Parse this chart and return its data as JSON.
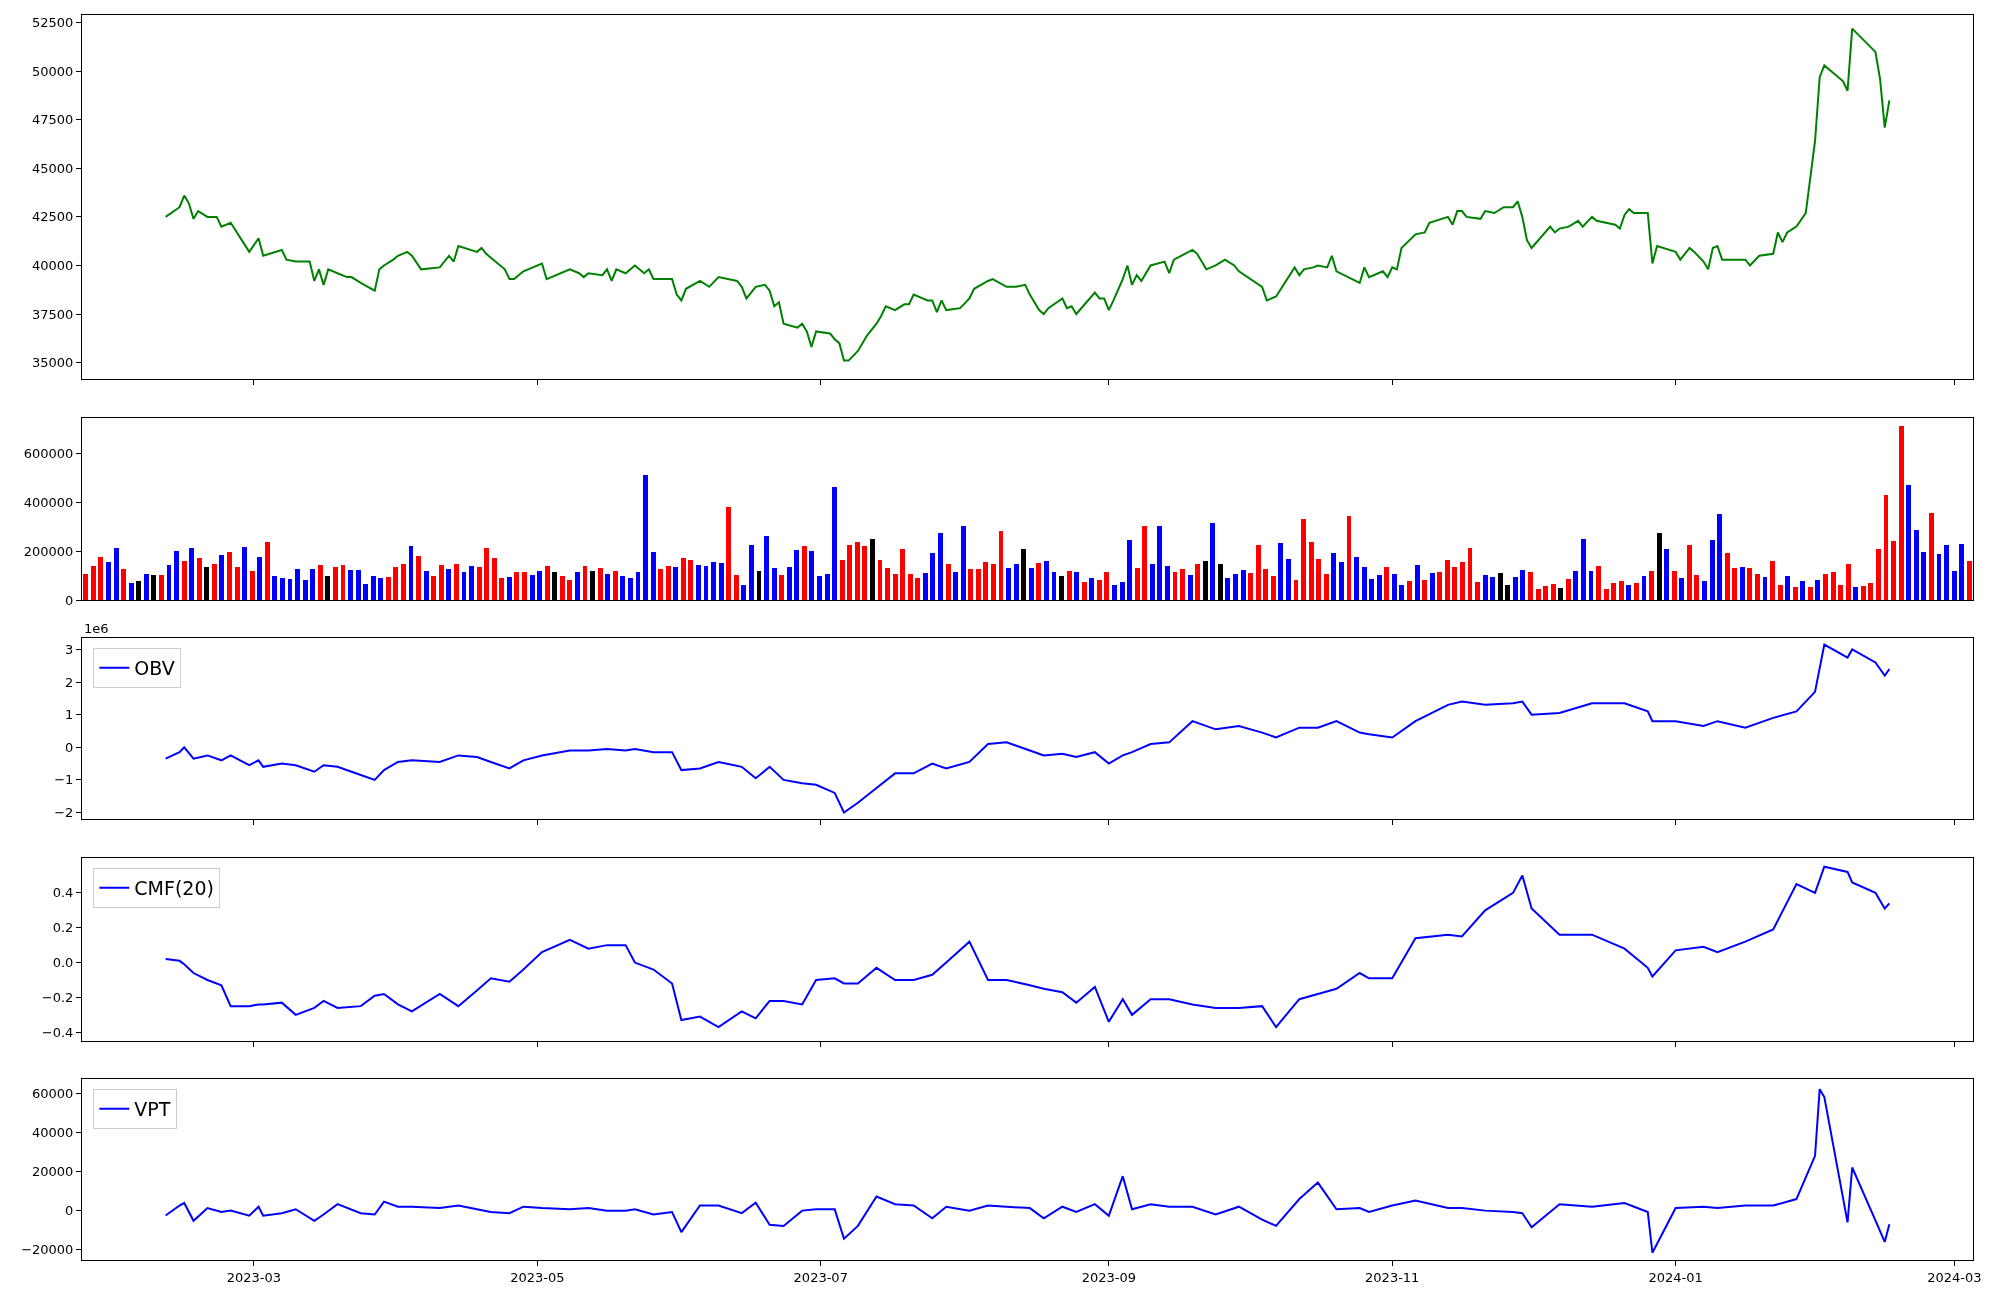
{
  "chart_data": [
    {
      "type": "line",
      "x": [
        "2023-02-10",
        "2023-02-13",
        "2023-02-14",
        "2023-02-15",
        "2023-02-16",
        "2023-02-17",
        "2023-02-19",
        "2023-02-21",
        "2023-02-22",
        "2023-02-24",
        "2023-02-28",
        "2023-03-02",
        "2023-03-03",
        "2023-03-07",
        "2023-03-08",
        "2023-03-10",
        "2023-03-13",
        "2023-03-14",
        "2023-03-15",
        "2023-03-16",
        "2023-03-17",
        "2023-03-19",
        "2023-03-21",
        "2023-03-22",
        "2023-03-24",
        "2023-03-27",
        "2023-03-28",
        "2023-03-29",
        "2023-03-31",
        "2023-04-01",
        "2023-04-03",
        "2023-04-04",
        "2023-04-06",
        "2023-04-10",
        "2023-04-12",
        "2023-04-13",
        "2023-04-14",
        "2023-04-18",
        "2023-04-19",
        "2023-04-20",
        "2023-04-21",
        "2023-04-24",
        "2023-04-25",
        "2023-04-26",
        "2023-04-28",
        "2023-05-02",
        "2023-05-03",
        "2023-05-08",
        "2023-05-10",
        "2023-05-11",
        "2023-05-12",
        "2023-05-15",
        "2023-05-16",
        "2023-05-17",
        "2023-05-18",
        "2023-05-20",
        "2023-05-22",
        "2023-05-24",
        "2023-05-25",
        "2023-05-26",
        "2023-05-30",
        "2023-05-31",
        "2023-06-01",
        "2023-06-02",
        "2023-06-05",
        "2023-06-07",
        "2023-06-09",
        "2023-06-13",
        "2023-06-14",
        "2023-06-15",
        "2023-06-17",
        "2023-06-19",
        "2023-06-20",
        "2023-06-21",
        "2023-06-22",
        "2023-06-23",
        "2023-06-26",
        "2023-06-27",
        "2023-06-28",
        "2023-06-29",
        "2023-06-30",
        "2023-07-03",
        "2023-07-04",
        "2023-07-05",
        "2023-07-06",
        "2023-07-07",
        "2023-07-09",
        "2023-07-11",
        "2023-07-13",
        "2023-07-14",
        "2023-07-15",
        "2023-07-17",
        "2023-07-19",
        "2023-07-20",
        "2023-07-21",
        "2023-07-24",
        "2023-07-25",
        "2023-07-26",
        "2023-07-27",
        "2023-07-28",
        "2023-07-31",
        "2023-08-02",
        "2023-08-03",
        "2023-08-06",
        "2023-08-07",
        "2023-08-10",
        "2023-08-12",
        "2023-08-14",
        "2023-08-15",
        "2023-08-17",
        "2023-08-18",
        "2023-08-19",
        "2023-08-22",
        "2023-08-23",
        "2023-08-24",
        "2023-08-25",
        "2023-08-29",
        "2023-08-30",
        "2023-08-31",
        "2023-09-01",
        "2023-09-02",
        "2023-09-04",
        "2023-09-05",
        "2023-09-06",
        "2023-09-07",
        "2023-09-08",
        "2023-09-10",
        "2023-09-13",
        "2023-09-14",
        "2023-09-15",
        "2023-09-19",
        "2023-09-20",
        "2023-09-22",
        "2023-09-24",
        "2023-09-26",
        "2023-09-28",
        "2023-09-29",
        "2023-10-04",
        "2023-10-05",
        "2023-10-07",
        "2023-10-11",
        "2023-10-12",
        "2023-10-13",
        "2023-10-15",
        "2023-10-16",
        "2023-10-18",
        "2023-10-19",
        "2023-10-20",
        "2023-10-25",
        "2023-10-26",
        "2023-10-27",
        "2023-10-30",
        "2023-10-31",
        "2023-11-01",
        "2023-11-02",
        "2023-11-03",
        "2023-11-06",
        "2023-11-08",
        "2023-11-09",
        "2023-11-13",
        "2023-11-14",
        "2023-11-15",
        "2023-11-16",
        "2023-11-17",
        "2023-11-20",
        "2023-11-21",
        "2023-11-23",
        "2023-11-25",
        "2023-11-27",
        "2023-11-28",
        "2023-11-29",
        "2023-11-30",
        "2023-12-01",
        "2023-12-05",
        "2023-12-06",
        "2023-12-07",
        "2023-12-09",
        "2023-12-11",
        "2023-12-12",
        "2023-12-14",
        "2023-12-15",
        "2023-12-19",
        "2023-12-20",
        "2023-12-21",
        "2023-12-22",
        "2023-12-23",
        "2023-12-26",
        "2023-12-27",
        "2023-12-28",
        "2024-01-01",
        "2024-01-02",
        "2024-01-04",
        "2024-01-05",
        "2024-01-07",
        "2024-01-08",
        "2024-01-09",
        "2024-01-10",
        "2024-01-11",
        "2024-01-16",
        "2024-01-17",
        "2024-01-19",
        "2024-01-22",
        "2024-01-23",
        "2024-01-24",
        "2024-01-25",
        "2024-01-27",
        "2024-01-29",
        "2024-01-31",
        "2024-02-01",
        "2024-02-02",
        "2024-02-06",
        "2024-02-07",
        "2024-02-08",
        "2024-02-13",
        "2024-02-14",
        "2024-02-15",
        "2024-02-16"
      ],
      "series": [
        {
          "color": "#008000",
          "values": [
            42500,
            43000,
            43600,
            43200,
            42400,
            42800,
            42500,
            42500,
            42000,
            42200,
            40700,
            41400,
            40500,
            40800,
            40300,
            40200,
            40200,
            39200,
            39800,
            39000,
            39800,
            39600,
            39400,
            39400,
            39100,
            38700,
            39800,
            40000,
            40300,
            40500,
            40700,
            40500,
            39800,
            39900,
            40500,
            40200,
            41000,
            40700,
            40900,
            40600,
            40400,
            39800,
            39300,
            39300,
            39700,
            40100,
            39300,
            39800,
            39600,
            39400,
            39600,
            39500,
            39800,
            39200,
            39800,
            39600,
            40000,
            39600,
            39800,
            39300,
            39300,
            38500,
            38200,
            38800,
            39200,
            38900,
            39400,
            39200,
            38900,
            38300,
            38900,
            39000,
            38700,
            37900,
            38100,
            37000,
            36800,
            37000,
            36600,
            35800,
            36600,
            36500,
            36200,
            36000,
            35100,
            35100,
            35600,
            36400,
            37000,
            37400,
            37900,
            37700,
            38000,
            38000,
            38500,
            38200,
            38200,
            37600,
            38200,
            37700,
            37800,
            38300,
            38800,
            39200,
            39300,
            38900,
            38900,
            39000,
            38500,
            37700,
            37500,
            37800,
            38300,
            37800,
            37900,
            37500,
            38600,
            38300,
            38300,
            37700,
            38200,
            39300,
            40000,
            39000,
            39500,
            39200,
            40000,
            40200,
            39600,
            40300,
            40800,
            40600,
            39800,
            40000,
            40300,
            40000,
            39700,
            38900,
            38200,
            38400,
            39900,
            39500,
            39800,
            39900,
            40000,
            39900,
            40500,
            39700,
            39100,
            39900,
            39400,
            39700,
            39400,
            39900,
            39800,
            40900,
            41600,
            41700,
            42200,
            42500,
            42100,
            42800,
            42800,
            42500,
            42400,
            42800,
            42700,
            43000,
            43000,
            43300,
            42500,
            41300,
            40900,
            42000,
            41700,
            41900,
            42000,
            42300,
            42000,
            42500,
            42300,
            42100,
            41900,
            42600,
            42900,
            42700,
            42700,
            40100,
            41000,
            40700,
            40300,
            40900,
            40700,
            40200,
            39800,
            40900,
            41000,
            40300,
            40300,
            40000,
            40500,
            40600,
            41700,
            41200,
            41700,
            42000,
            42700,
            46400,
            49700,
            50300,
            49500,
            49000,
            52200,
            51000,
            49600,
            47100,
            48500
          ]
        }
      ],
      "xlim": [
        "2023-01-23",
        "2024-03-05"
      ],
      "xticks": [
        "2023-03",
        "2023-05",
        "2023-07",
        "2023-09",
        "2023-11",
        "2024-01",
        "2024-03"
      ],
      "ylim": [
        34150,
        52900
      ],
      "yticks": [
        35000,
        37500,
        40000,
        42500,
        45000,
        47500,
        50000,
        52500
      ],
      "tick_labels": "y"
    },
    {
      "type": "bar",
      "categories": [
        null,
        null,
        null,
        null,
        null,
        null,
        null,
        null,
        null,
        null,
        null,
        null,
        null,
        null,
        null,
        null,
        null,
        null,
        null,
        null,
        null,
        null,
        null,
        null,
        null,
        null,
        null,
        null,
        null,
        null,
        null,
        null,
        null,
        null,
        null,
        null,
        null,
        null,
        null,
        null,
        null,
        null,
        null,
        null,
        null,
        null,
        null,
        null,
        null,
        null,
        null,
        null,
        null,
        null,
        null,
        null,
        null,
        null,
        null,
        null,
        null,
        null,
        null,
        null,
        null,
        null,
        null,
        null,
        null,
        null,
        null,
        null,
        null,
        null,
        null,
        null,
        null,
        null,
        null,
        null,
        null,
        null,
        null,
        null,
        null,
        null,
        null,
        null,
        null,
        null,
        null,
        null,
        null,
        null,
        null,
        null,
        null,
        null,
        null,
        null,
        null,
        null,
        null,
        null,
        null,
        null,
        null,
        null,
        null,
        null,
        null,
        null,
        null,
        null,
        null,
        null,
        null,
        null,
        null,
        null,
        null,
        null,
        null,
        null,
        null,
        null,
        null,
        null,
        null,
        null,
        null,
        null,
        null,
        null,
        null,
        null,
        null,
        null,
        null,
        null,
        null,
        null,
        null,
        null,
        null,
        null,
        null,
        null,
        null,
        null,
        null,
        null,
        null,
        null,
        null,
        null,
        null,
        null,
        null,
        null,
        null,
        null,
        null,
        null,
        null,
        null,
        null,
        null,
        null,
        null,
        null,
        null,
        null,
        null,
        null,
        null,
        null,
        null,
        null,
        null,
        null,
        null,
        null,
        null,
        null,
        null,
        null,
        null,
        null,
        null,
        null,
        null,
        null,
        null,
        null,
        null,
        null,
        null,
        null,
        null,
        null,
        null,
        null,
        null,
        null,
        null,
        null,
        null,
        null,
        null,
        null,
        null,
        null,
        null,
        null,
        null,
        null,
        null,
        null,
        null,
        null,
        null,
        null,
        null,
        null,
        null,
        null,
        null,
        null,
        null,
        null,
        null,
        null,
        null,
        null,
        null,
        null,
        null,
        null,
        null,
        null,
        null,
        null,
        null,
        null,
        null,
        null,
        null,
        null,
        null
      ],
      "values": [
        108000,
        140000,
        178000,
        157000,
        215000,
        127000,
        70000,
        78000,
        108000,
        103000,
        103000,
        145000,
        202000,
        161000,
        215000,
        173000,
        135000,
        148000,
        186000,
        199000,
        135000,
        219000,
        119000,
        178000,
        240000,
        100000,
        91000,
        86000,
        127000,
        83000,
        127000,
        145000,
        100000,
        135000,
        145000,
        124000,
        124000,
        67000,
        100000,
        91000,
        95000,
        135000,
        148000,
        223000,
        181000,
        119000,
        100000,
        145000,
        127000,
        148000,
        116000,
        140000,
        135000,
        215000,
        173000,
        91000,
        95000,
        116000,
        116000,
        103000,
        119000,
        140000,
        116000,
        100000,
        83000,
        116000,
        140000,
        119000,
        132000,
        108000,
        119000,
        100000,
        91000,
        116000,
        512000,
        199000,
        127000,
        140000,
        135000,
        173000,
        165000,
        145000,
        140000,
        157000,
        153000,
        380000,
        103000,
        62000,
        227000,
        119000,
        264000,
        132000,
        103000,
        137000,
        207000,
        223000,
        202000,
        100000,
        108000,
        463000,
        165000,
        227000,
        240000,
        223000,
        251000,
        165000,
        132000,
        108000,
        210000,
        108000,
        91000,
        111000,
        194000,
        277000,
        148000,
        116000,
        305000,
        127000,
        127000,
        157000,
        148000,
        285000,
        132000,
        148000,
        210000,
        132000,
        153000,
        161000,
        116000,
        100000,
        119000,
        116000,
        75000,
        91000,
        83000,
        116000,
        62000,
        75000,
        248000,
        132000,
        305000,
        148000,
        305000,
        140000,
        116000,
        127000,
        103000,
        148000,
        161000,
        318000,
        148000,
        91000,
        108000,
        124000,
        111000,
        227000,
        127000,
        100000,
        232000,
        170000,
        83000,
        334000,
        240000,
        170000,
        108000,
        191000,
        157000,
        346000,
        178000,
        137000,
        86000,
        103000,
        137000,
        108000,
        62000,
        78000,
        144000,
        83000,
        111000,
        116000,
        165000,
        136000,
        157000,
        214000,
        74000,
        103000,
        94000,
        111000,
        61000,
        94000,
        123000,
        116000,
        46000,
        57000,
        66000,
        49000,
        86000,
        120000,
        251000,
        120000,
        140000,
        46000,
        70000,
        78000,
        61000,
        70000,
        98000,
        120000,
        277000,
        210000,
        120000,
        90000,
        227000,
        103000,
        78000,
        248000,
        355000,
        194000,
        131000,
        136000,
        131000,
        107000,
        94000,
        161000,
        61000,
        98000,
        53000,
        78000,
        53000,
        83000,
        107000,
        116000,
        61000,
        148000,
        53000,
        57000,
        70000,
        210000,
        429000,
        244000,
        716000,
        471000,
        288000,
        198000,
        359000,
        190000,
        227000,
        120000,
        231000,
        161000
      ],
      "colors": [
        "#ff0000",
        "#ff0000",
        "#ff0000",
        "#0000ff",
        "#0000ff",
        "#ff0000",
        "#0000ff",
        "#000000",
        "#0000ff",
        "#000000",
        "#ff0000",
        "#0000ff",
        "#0000ff",
        "#ff0000",
        "#0000ff",
        "#ff0000",
        "#000000",
        "#ff0000",
        "#0000ff",
        "#ff0000",
        "#ff0000",
        "#0000ff",
        "#ff0000",
        "#0000ff",
        "#ff0000",
        "#0000ff",
        "#0000ff",
        "#0000ff",
        "#0000ff",
        "#0000ff",
        "#0000ff",
        "#ff0000",
        "#000000",
        "#ff0000",
        "#ff0000",
        "#0000ff",
        "#0000ff",
        "#0000ff",
        "#0000ff",
        "#0000ff",
        "#ff0000",
        "#ff0000",
        "#ff0000",
        "#0000ff",
        "#ff0000",
        "#0000ff",
        "#ff0000",
        "#ff0000",
        "#0000ff",
        "#ff0000",
        "#0000ff",
        "#0000ff",
        "#ff0000",
        "#ff0000",
        "#ff0000",
        "#ff0000",
        "#0000ff",
        "#ff0000",
        "#ff0000",
        "#0000ff",
        "#0000ff",
        "#ff0000",
        "#000000",
        "#ff0000",
        "#ff0000",
        "#0000ff",
        "#ff0000",
        "#000000",
        "#ff0000",
        "#0000ff",
        "#ff0000",
        "#0000ff",
        "#0000ff",
        "#0000ff",
        "#0000ff",
        "#0000ff",
        "#ff0000",
        "#ff0000",
        "#0000ff",
        "#ff0000",
        "#ff0000",
        "#0000ff",
        "#0000ff",
        "#0000ff",
        "#0000ff",
        "#ff0000",
        "#ff0000",
        "#0000ff",
        "#0000ff",
        "#000000",
        "#0000ff",
        "#0000ff",
        "#ff0000",
        "#0000ff",
        "#0000ff",
        "#ff0000",
        "#0000ff",
        "#0000ff",
        "#0000ff",
        "#0000ff",
        "#ff0000",
        "#ff0000",
        "#ff0000",
        "#ff0000",
        "#000000",
        "#ff0000",
        "#ff0000",
        "#ff0000",
        "#ff0000",
        "#ff0000",
        "#ff0000",
        "#0000ff",
        "#0000ff",
        "#0000ff",
        "#ff0000",
        "#0000ff",
        "#0000ff",
        "#ff0000",
        "#ff0000",
        "#ff0000",
        "#ff0000",
        "#ff0000",
        "#0000ff",
        "#0000ff",
        "#000000",
        "#0000ff",
        "#ff0000",
        "#0000ff",
        "#0000ff",
        "#000000",
        "#ff0000",
        "#0000ff",
        "#ff0000",
        "#0000ff",
        "#ff0000",
        "#ff0000",
        "#0000ff",
        "#0000ff",
        "#0000ff",
        "#ff0000",
        "#ff0000",
        "#0000ff",
        "#0000ff",
        "#0000ff",
        "#ff0000",
        "#ff0000",
        "#0000ff",
        "#ff0000",
        "#000000",
        "#0000ff",
        "#000000",
        "#0000ff",
        "#0000ff",
        "#0000ff",
        "#ff0000",
        "#ff0000",
        "#ff0000",
        "#ff0000",
        "#0000ff",
        "#0000ff",
        "#ff0000",
        "#ff0000",
        "#ff0000",
        "#ff0000",
        "#ff0000",
        "#0000ff",
        "#0000ff",
        "#ff0000",
        "#0000ff",
        "#0000ff",
        "#0000ff",
        "#0000ff",
        "#ff0000",
        "#0000ff",
        "#0000ff",
        "#ff0000",
        "#0000ff",
        "#ff0000",
        "#0000ff",
        "#ff0000",
        "#ff0000",
        "#ff0000",
        "#ff0000",
        "#ff0000",
        "#ff0000",
        "#0000ff",
        "#0000ff",
        "#000000",
        "#000000",
        "#0000ff",
        "#0000ff",
        "#ff0000",
        "#ff0000",
        "#ff0000",
        "#ff0000",
        "#000000",
        "#ff0000",
        "#0000ff",
        "#0000ff",
        "#0000ff",
        "#ff0000",
        "#ff0000",
        "#ff0000",
        "#ff0000",
        "#0000ff",
        "#ff0000",
        "#0000ff",
        "#ff0000",
        "#000000",
        "#0000ff",
        "#ff0000",
        "#0000ff",
        "#ff0000",
        "#ff0000",
        "#0000ff",
        "#0000ff",
        "#0000ff",
        "#ff0000",
        "#ff0000",
        "#0000ff",
        "#ff0000",
        "#ff0000",
        "#0000ff",
        "#ff0000",
        "#ff0000",
        "#0000ff",
        "#ff0000",
        "#0000ff",
        "#ff0000",
        "#0000ff",
        "#ff0000",
        "#ff0000",
        "#ff0000",
        "#ff0000",
        "#0000ff",
        "#ff0000",
        "#ff0000",
        "#ff0000",
        "#ff0000",
        "#ff0000",
        "#ff0000",
        "#0000ff",
        "#0000ff",
        "#0000ff",
        "#ff0000",
        "#0000ff",
        "#0000ff",
        "#0000ff",
        "#0000ff",
        "#ff0000"
      ],
      "ylim": [
        0,
        747000
      ],
      "yticks": [
        0,
        200000,
        400000,
        600000
      ],
      "tick_labels": "y"
    },
    {
      "type": "line",
      "x": [
        "2023-02-10",
        "2023-02-13",
        "2023-02-14",
        "2023-02-16",
        "2023-02-19",
        "2023-02-22",
        "2023-02-24",
        "2023-02-28",
        "2023-03-02",
        "2023-03-03",
        "2023-03-07",
        "2023-03-10",
        "2023-03-14",
        "2023-03-16",
        "2023-03-19",
        "2023-03-24",
        "2023-03-27",
        "2023-03-29",
        "2023-04-01",
        "2023-04-04",
        "2023-04-10",
        "2023-04-14",
        "2023-04-18",
        "2023-04-21",
        "2023-04-25",
        "2023-04-28",
        "2023-05-02",
        "2023-05-08",
        "2023-05-12",
        "2023-05-16",
        "2023-05-20",
        "2023-05-22",
        "2023-05-26",
        "2023-05-30",
        "2023-06-01",
        "2023-06-05",
        "2023-06-09",
        "2023-06-14",
        "2023-06-17",
        "2023-06-20",
        "2023-06-23",
        "2023-06-27",
        "2023-06-30",
        "2023-07-04",
        "2023-07-06",
        "2023-07-09",
        "2023-07-13",
        "2023-07-17",
        "2023-07-21",
        "2023-07-25",
        "2023-07-28",
        "2023-08-02",
        "2023-08-06",
        "2023-08-10",
        "2023-08-15",
        "2023-08-18",
        "2023-08-22",
        "2023-08-25",
        "2023-08-29",
        "2023-09-01",
        "2023-09-04",
        "2023-09-06",
        "2023-09-10",
        "2023-09-14",
        "2023-09-19",
        "2023-09-24",
        "2023-09-29",
        "2023-10-04",
        "2023-10-07",
        "2023-10-12",
        "2023-10-16",
        "2023-10-20",
        "2023-10-25",
        "2023-10-27",
        "2023-11-01",
        "2023-11-06",
        "2023-11-13",
        "2023-11-16",
        "2023-11-21",
        "2023-11-27",
        "2023-11-29",
        "2023-12-01",
        "2023-12-07",
        "2023-12-14",
        "2023-12-21",
        "2023-12-26",
        "2023-12-27",
        "2024-01-01",
        "2024-01-07",
        "2024-01-10",
        "2024-01-16",
        "2024-01-22",
        "2024-01-27",
        "2024-01-31",
        "2024-02-02",
        "2024-02-07",
        "2024-02-08",
        "2024-02-13",
        "2024-02-15",
        "2024-02-16"
      ],
      "series": [
        {
          "name": "OBV",
          "color": "#0000ff",
          "values": [
            -0.35,
            -0.15,
            0,
            -0.35,
            -0.25,
            -0.4,
            -0.25,
            -0.55,
            -0.4,
            -0.6,
            -0.5,
            -0.55,
            -0.75,
            -0.55,
            -0.6,
            -0.85,
            -1.0,
            -0.7,
            -0.45,
            -0.4,
            -0.45,
            -0.25,
            -0.3,
            -0.45,
            -0.65,
            -0.4,
            -0.25,
            -0.1,
            -0.1,
            -0.05,
            -0.1,
            -0.05,
            -0.15,
            -0.15,
            -0.7,
            -0.65,
            -0.45,
            -0.6,
            -0.95,
            -0.6,
            -1.0,
            -1.1,
            -1.15,
            -1.4,
            -2.0,
            -1.7,
            -1.25,
            -0.8,
            -0.8,
            -0.5,
            -0.65,
            -0.45,
            0.1,
            0.15,
            -0.1,
            -0.25,
            -0.2,
            -0.3,
            -0.15,
            -0.5,
            -0.25,
            -0.15,
            0.1,
            0.15,
            0.8,
            0.55,
            0.65,
            0.45,
            0.3,
            0.6,
            0.6,
            0.8,
            0.45,
            0.4,
            0.3,
            0.8,
            1.3,
            1.4,
            1.3,
            1.35,
            1.4,
            1.0,
            1.05,
            1.35,
            1.35,
            1.1,
            0.8,
            0.8,
            0.65,
            0.8,
            0.6,
            0.9,
            1.1,
            1.7,
            3.15,
            2.75,
            3.0,
            2.6,
            2.2,
            2.4
          ]
        }
      ],
      "xlim": [
        "2023-01-23",
        "2024-03-05"
      ],
      "xticks": [
        "2023-03",
        "2023-05",
        "2023-07",
        "2023-09",
        "2023-11",
        "2024-01",
        "2024-03"
      ],
      "ylim": [
        -2.2,
        3.35
      ],
      "yticks": [
        {
          "value": -2,
          "label": "−2"
        },
        {
          "value": -1,
          "label": "−1"
        },
        0,
        1,
        2,
        3
      ],
      "annotations": [
        "1e6"
      ],
      "legend": "top left",
      "tick_labels": "y"
    },
    {
      "type": "line",
      "x": [
        "2023-02-10",
        "2023-02-13",
        "2023-02-14",
        "2023-02-16",
        "2023-02-19",
        "2023-02-22",
        "2023-02-24",
        "2023-02-28",
        "2023-03-02",
        "2023-03-03",
        "2023-03-07",
        "2023-03-10",
        "2023-03-14",
        "2023-03-16",
        "2023-03-19",
        "2023-03-24",
        "2023-03-27",
        "2023-03-29",
        "2023-04-01",
        "2023-04-04",
        "2023-04-10",
        "2023-04-14",
        "2023-04-18",
        "2023-04-21",
        "2023-04-25",
        "2023-04-28",
        "2023-05-02",
        "2023-05-08",
        "2023-05-12",
        "2023-05-16",
        "2023-05-20",
        "2023-05-22",
        "2023-05-26",
        "2023-05-30",
        "2023-06-01",
        "2023-06-05",
        "2023-06-09",
        "2023-06-14",
        "2023-06-17",
        "2023-06-20",
        "2023-06-23",
        "2023-06-27",
        "2023-06-30",
        "2023-07-04",
        "2023-07-06",
        "2023-07-09",
        "2023-07-13",
        "2023-07-17",
        "2023-07-21",
        "2023-07-25",
        "2023-07-28",
        "2023-08-02",
        "2023-08-06",
        "2023-08-10",
        "2023-08-15",
        "2023-08-18",
        "2023-08-22",
        "2023-08-25",
        "2023-08-29",
        "2023-09-01",
        "2023-09-04",
        "2023-09-06",
        "2023-09-10",
        "2023-09-14",
        "2023-09-19",
        "2023-09-24",
        "2023-09-29",
        "2023-10-04",
        "2023-10-07",
        "2023-10-12",
        "2023-10-16",
        "2023-10-20",
        "2023-10-25",
        "2023-10-27",
        "2023-11-01",
        "2023-11-06",
        "2023-11-13",
        "2023-11-16",
        "2023-11-21",
        "2023-11-27",
        "2023-11-29",
        "2023-12-01",
        "2023-12-07",
        "2023-12-14",
        "2023-12-21",
        "2023-12-26",
        "2023-12-27",
        "2024-01-01",
        "2024-01-07",
        "2024-01-10",
        "2024-01-16",
        "2024-01-22",
        "2024-01-27",
        "2024-01-31",
        "2024-02-02",
        "2024-02-07",
        "2024-02-08",
        "2024-02-13",
        "2024-02-15",
        "2024-02-16"
      ],
      "series": [
        {
          "name": "CMF(20)",
          "color": "#0000ff",
          "values": [
            0.02,
            0.01,
            -0.01,
            -0.06,
            -0.1,
            -0.13,
            -0.25,
            -0.25,
            -0.24,
            -0.24,
            -0.23,
            -0.3,
            -0.26,
            -0.22,
            -0.26,
            -0.25,
            -0.19,
            -0.18,
            -0.24,
            -0.28,
            -0.18,
            -0.25,
            -0.16,
            -0.09,
            -0.11,
            -0.04,
            0.06,
            0.13,
            0.08,
            0.1,
            0.1,
            0.0,
            -0.04,
            -0.12,
            -0.33,
            -0.31,
            -0.37,
            -0.28,
            -0.32,
            -0.22,
            -0.22,
            -0.24,
            -0.1,
            -0.09,
            -0.12,
            -0.12,
            -0.03,
            -0.1,
            -0.1,
            -0.07,
            0.0,
            0.12,
            -0.1,
            -0.1,
            -0.13,
            -0.15,
            -0.17,
            -0.23,
            -0.14,
            -0.34,
            -0.21,
            -0.3,
            -0.21,
            -0.21,
            -0.24,
            -0.26,
            -0.26,
            -0.25,
            -0.37,
            -0.21,
            -0.18,
            -0.15,
            -0.06,
            -0.09,
            -0.09,
            0.14,
            0.16,
            0.15,
            0.3,
            0.4,
            0.5,
            0.31,
            0.16,
            0.16,
            0.08,
            -0.03,
            -0.08,
            0.07,
            0.09,
            0.06,
            0.12,
            0.19,
            0.45,
            0.4,
            0.55,
            0.52,
            0.46,
            0.4,
            0.31,
            0.34
          ]
        }
      ],
      "xlim": [
        "2023-01-23",
        "2024-03-05"
      ],
      "xticks": [
        "2023-03",
        "2023-05",
        "2023-07",
        "2023-09",
        "2023-11",
        "2024-01",
        "2024-03"
      ],
      "ylim": [
        -0.45,
        0.6
      ],
      "yticks": [
        {
          "value": -0.4,
          "label": "−0.4"
        },
        {
          "value": -0.2,
          "label": "−0.2"
        },
        {
          "value": 0,
          "label": "0.0"
        },
        {
          "value": 0.2,
          "label": "0.2"
        },
        {
          "value": 0.4,
          "label": "0.4"
        }
      ],
      "legend": "top left",
      "tick_labels": "y"
    },
    {
      "type": "line",
      "x": [
        "2023-02-10",
        "2023-02-13",
        "2023-02-14",
        "2023-02-16",
        "2023-02-19",
        "2023-02-22",
        "2023-02-24",
        "2023-02-28",
        "2023-03-02",
        "2023-03-03",
        "2023-03-07",
        "2023-03-10",
        "2023-03-14",
        "2023-03-16",
        "2023-03-19",
        "2023-03-24",
        "2023-03-27",
        "2023-03-29",
        "2023-04-01",
        "2023-04-04",
        "2023-04-10",
        "2023-04-14",
        "2023-04-18",
        "2023-04-21",
        "2023-04-25",
        "2023-04-28",
        "2023-05-02",
        "2023-05-08",
        "2023-05-12",
        "2023-05-16",
        "2023-05-20",
        "2023-05-22",
        "2023-05-26",
        "2023-05-30",
        "2023-06-01",
        "2023-06-05",
        "2023-06-09",
        "2023-06-14",
        "2023-06-17",
        "2023-06-20",
        "2023-06-23",
        "2023-06-27",
        "2023-06-30",
        "2023-07-04",
        "2023-07-06",
        "2023-07-09",
        "2023-07-13",
        "2023-07-17",
        "2023-07-21",
        "2023-07-25",
        "2023-07-28",
        "2023-08-02",
        "2023-08-06",
        "2023-08-10",
        "2023-08-15",
        "2023-08-18",
        "2023-08-22",
        "2023-08-25",
        "2023-08-29",
        "2023-09-01",
        "2023-09-04",
        "2023-09-06",
        "2023-09-10",
        "2023-09-14",
        "2023-09-19",
        "2023-09-24",
        "2023-09-29",
        "2023-10-04",
        "2023-10-07",
        "2023-10-12",
        "2023-10-16",
        "2023-10-20",
        "2023-10-25",
        "2023-10-27",
        "2023-11-01",
        "2023-11-06",
        "2023-11-13",
        "2023-11-16",
        "2023-11-21",
        "2023-11-27",
        "2023-11-29",
        "2023-12-01",
        "2023-12-07",
        "2023-12-14",
        "2023-12-21",
        "2023-12-26",
        "2023-12-27",
        "2024-01-01",
        "2024-01-07",
        "2024-01-10",
        "2024-01-16",
        "2024-01-22",
        "2024-01-27",
        "2024-01-31",
        "2024-02-01",
        "2024-02-02",
        "2024-02-07",
        "2024-02-08",
        "2024-02-13",
        "2024-02-15",
        "2024-02-16"
      ],
      "series": [
        {
          "name": "VPT",
          "color": "#0000ff",
          "values": [
            -2500,
            2600,
            3900,
            -5200,
            1300,
            -700,
            0,
            -2600,
            2000,
            -2600,
            -1300,
            700,
            -5200,
            -2000,
            3300,
            -1300,
            -2000,
            4600,
            2000,
            2000,
            1300,
            2600,
            700,
            -700,
            -1300,
            2000,
            1300,
            700,
            1300,
            0,
            0,
            700,
            -2000,
            -700,
            -11000,
            2600,
            2600,
            -1300,
            4000,
            -7200,
            -7800,
            0,
            700,
            700,
            -14300,
            -7800,
            7200,
            3300,
            2600,
            -3900,
            2000,
            0,
            2600,
            2000,
            1300,
            -3900,
            2000,
            -700,
            3300,
            -2600,
            17600,
            700,
            3300,
            2000,
            2000,
            -2000,
            2000,
            -4600,
            -7800,
            5900,
            14300,
            700,
            1300,
            -700,
            2600,
            5200,
            1300,
            1300,
            0,
            -700,
            -1300,
            -8500,
            3300,
            2000,
            3900,
            -700,
            -21500,
            1300,
            2000,
            1300,
            2600,
            2600,
            5900,
            28000,
            62000,
            58000,
            -6000,
            22000,
            -5000,
            -16000,
            -7000
          ]
        }
      ],
      "xlim": [
        "2023-01-23",
        "2024-03-05"
      ],
      "xticks": [
        "2023-03",
        "2023-05",
        "2023-07",
        "2023-09",
        "2023-11",
        "2024-01",
        "2024-03"
      ],
      "ylim": [
        -25200,
        67200
      ],
      "yticks": [
        {
          "value": -20000,
          "label": "−20000"
        },
        0,
        20000,
        40000,
        60000
      ],
      "legend": "top left"
    }
  ]
}
